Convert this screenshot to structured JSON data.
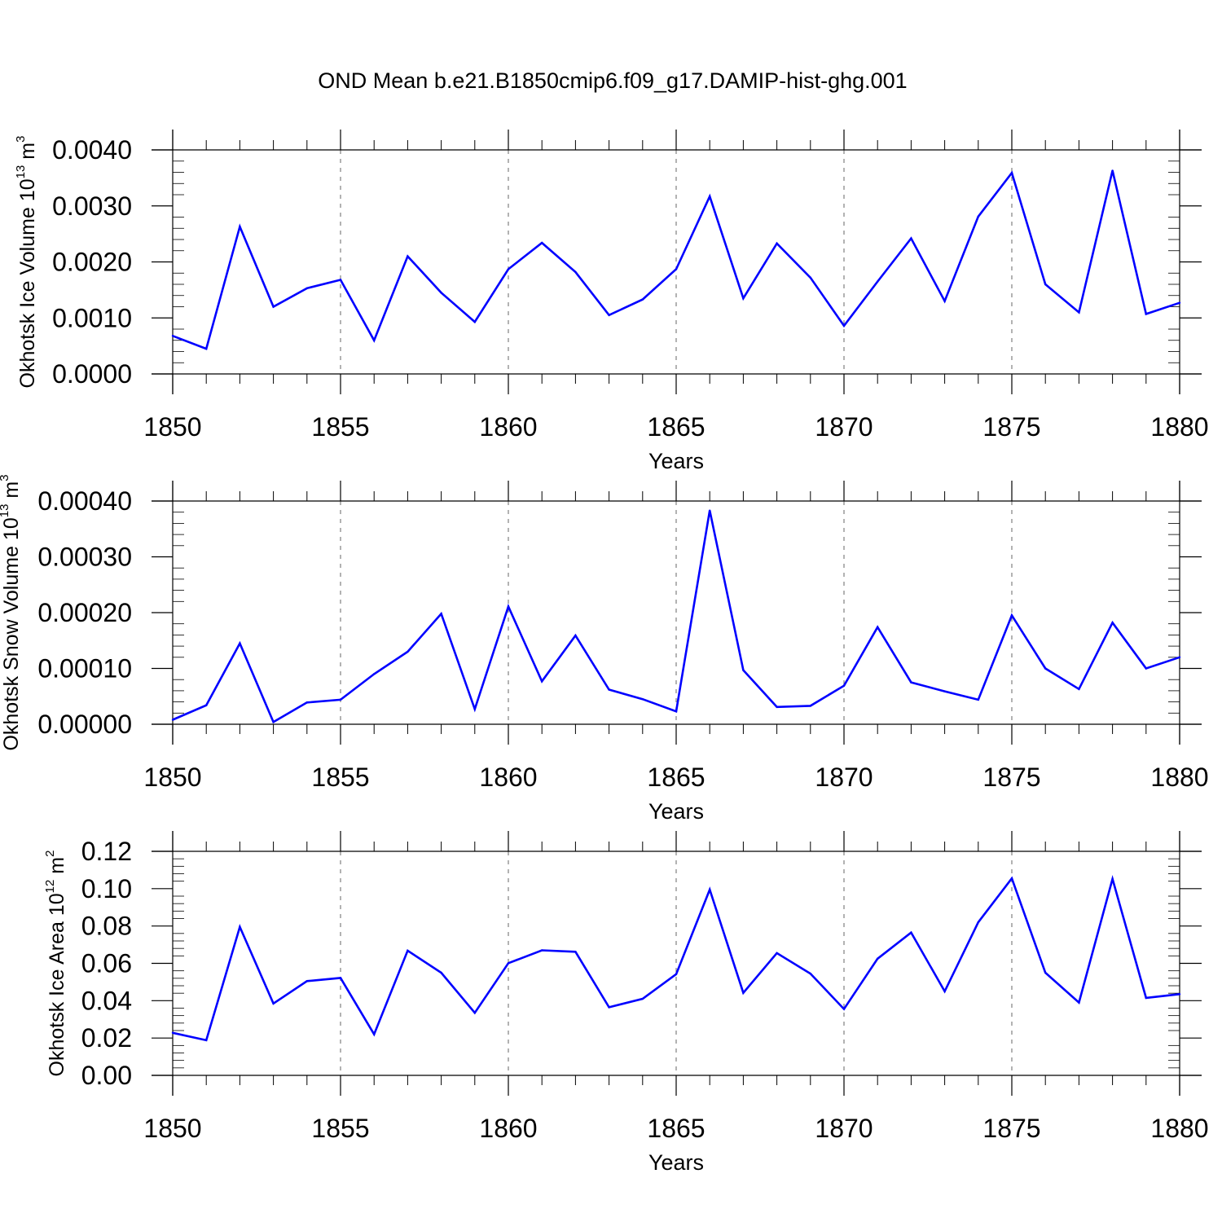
{
  "figure_title": "OND Mean b.e21.B1850cmip6.f09_g17.DAMIP-hist-ghg.001",
  "colors": {
    "line": "#0000ff",
    "axis": "#000000",
    "grid": "#808080"
  },
  "chart_data": [
    {
      "type": "line",
      "ylabel": {
        "text": "Okhotsk Ice Volume 10",
        "exp": "13",
        "unit": " m",
        "unit_exp": "3"
      },
      "xlabel": "Years",
      "xlim": [
        1850,
        1880
      ],
      "ylim": [
        0,
        0.004
      ],
      "yticks": [
        0,
        0.001,
        0.002,
        0.003,
        0.004
      ],
      "ytick_labels": [
        "0.0000",
        "0.0010",
        "0.0020",
        "0.0030",
        "0.0040"
      ],
      "xticks": [
        1850,
        1855,
        1860,
        1865,
        1870,
        1875,
        1880
      ],
      "xtick_labels": [
        "1850",
        "1855",
        "1860",
        "1865",
        "1870",
        "1875",
        "1880"
      ],
      "x": [
        1850,
        1851,
        1852,
        1853,
        1854,
        1855,
        1856,
        1857,
        1858,
        1859,
        1860,
        1861,
        1862,
        1863,
        1864,
        1865,
        1866,
        1867,
        1868,
        1869,
        1870,
        1871,
        1872,
        1873,
        1874,
        1875,
        1876,
        1877,
        1878,
        1879,
        1880
      ],
      "values": [
        0.00068,
        0.00045,
        0.00263,
        0.0012,
        0.00153,
        0.00168,
        0.0006,
        0.0021,
        0.00145,
        0.00093,
        0.00187,
        0.00234,
        0.00182,
        0.00105,
        0.00133,
        0.00187,
        0.00317,
        0.00135,
        0.00233,
        0.00172,
        0.00086,
        0.00165,
        0.00242,
        0.0013,
        0.00281,
        0.00359,
        0.0016,
        0.0011,
        0.00363,
        0.00107,
        0.00127
      ]
    },
    {
      "type": "line",
      "ylabel": {
        "text": "Okhotsk Snow Volume 10",
        "exp": "13",
        "unit": " m",
        "unit_exp": "3"
      },
      "xlabel": "Years",
      "xlim": [
        1850,
        1880
      ],
      "ylim": [
        0,
        0.0004
      ],
      "yticks": [
        0,
        0.0001,
        0.0002,
        0.0003,
        0.0004
      ],
      "ytick_labels": [
        "0.00000",
        "0.00010",
        "0.00020",
        "0.00030",
        "0.00040"
      ],
      "xticks": [
        1850,
        1855,
        1860,
        1865,
        1870,
        1875,
        1880
      ],
      "xtick_labels": [
        "1850",
        "1855",
        "1860",
        "1865",
        "1870",
        "1875",
        "1880"
      ],
      "x": [
        1850,
        1851,
        1852,
        1853,
        1854,
        1855,
        1856,
        1857,
        1858,
        1859,
        1860,
        1861,
        1862,
        1863,
        1864,
        1865,
        1866,
        1867,
        1868,
        1869,
        1870,
        1871,
        1872,
        1873,
        1874,
        1875,
        1876,
        1877,
        1878,
        1879,
        1880
      ],
      "values": [
        8e-06,
        3.4e-05,
        0.000145,
        4e-06,
        3.9e-05,
        4.4e-05,
        9e-05,
        0.00013,
        0.000198,
        2.7e-05,
        0.000211,
        7.7e-05,
        0.000159,
        6.2e-05,
        4.5e-05,
        2.3e-05,
        0.000383,
        9.7e-05,
        3.1e-05,
        3.3e-05,
        6.9e-05,
        0.000174,
        7.5e-05,
        5.9e-05,
        4.4e-05,
        0.000195,
        0.0001,
        6.3e-05,
        0.000182,
        0.0001,
        0.00012
      ]
    },
    {
      "type": "line",
      "ylabel": {
        "text": "Okhotsk Ice Area 10",
        "exp": "12",
        "unit": " m",
        "unit_exp": "2"
      },
      "xlabel": "Years",
      "xlim": [
        1850,
        1880
      ],
      "ylim": [
        0,
        0.12
      ],
      "yticks": [
        0,
        0.02,
        0.04,
        0.06,
        0.08,
        0.1,
        0.12
      ],
      "ytick_labels": [
        "0.00",
        "0.02",
        "0.04",
        "0.06",
        "0.08",
        "0.10",
        "0.12"
      ],
      "xticks": [
        1850,
        1855,
        1860,
        1865,
        1870,
        1875,
        1880
      ],
      "xtick_labels": [
        "1850",
        "1855",
        "1860",
        "1865",
        "1870",
        "1875",
        "1880"
      ],
      "x": [
        1850,
        1851,
        1852,
        1853,
        1854,
        1855,
        1856,
        1857,
        1858,
        1859,
        1860,
        1861,
        1862,
        1863,
        1864,
        1865,
        1866,
        1867,
        1868,
        1869,
        1870,
        1871,
        1872,
        1873,
        1874,
        1875,
        1876,
        1877,
        1878,
        1879,
        1880
      ],
      "values": [
        0.0228,
        0.0188,
        0.0795,
        0.0385,
        0.0505,
        0.0522,
        0.022,
        0.0668,
        0.055,
        0.0335,
        0.0601,
        0.067,
        0.0662,
        0.0365,
        0.041,
        0.0542,
        0.0995,
        0.0442,
        0.0655,
        0.0545,
        0.0355,
        0.0625,
        0.0765,
        0.045,
        0.082,
        0.1055,
        0.055,
        0.039,
        0.1052,
        0.0415,
        0.0435
      ]
    }
  ]
}
